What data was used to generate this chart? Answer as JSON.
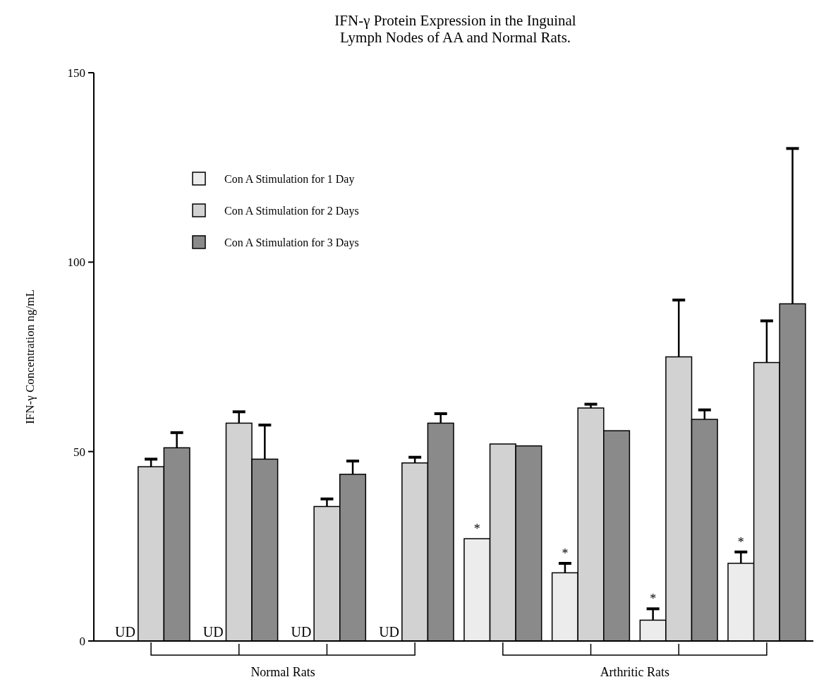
{
  "chart_data": {
    "type": "bar",
    "title": "IFN-γ Protein Expression in the Inguinal\nLymph Nodes of AA and Normal Rats.",
    "ylabel": "IFN-γ Concentration ng/mL",
    "categories": [
      null,
      null,
      null,
      null,
      null,
      null,
      null,
      null
    ],
    "series": [
      {
        "name": "Con A Stimulation for 1 Day",
        "color": "#ececec",
        "values": [
          null,
          null,
          null,
          null,
          27,
          18,
          5.5,
          20.5
        ],
        "errors": [
          null,
          null,
          null,
          null,
          null,
          [
            18,
            20.5
          ],
          [
            5.5,
            8.5
          ],
          [
            20.5,
            23.5
          ]
        ],
        "value_labels": [
          "UD",
          "UD",
          "UD",
          "UD",
          "*",
          "*",
          "*",
          "*"
        ]
      },
      {
        "name": "Con A Stimulation for 2 Days",
        "color": "#d2d2d2",
        "values": [
          46,
          57.5,
          35.5,
          47,
          52,
          61.5,
          75,
          73.5
        ],
        "errors": [
          [
            46,
            48
          ],
          [
            57.5,
            60.5
          ],
          [
            35.5,
            37.5
          ],
          [
            47,
            48.5
          ],
          null,
          [
            61.5,
            62.5
          ],
          [
            75,
            90
          ],
          [
            73.5,
            84.5
          ]
        ]
      },
      {
        "name": "Con A Stimulation for 3 Days",
        "color": "#8a8a8a",
        "values": [
          51,
          48,
          44,
          57.5,
          51.5,
          55.5,
          58.5,
          89
        ],
        "errors": [
          [
            51,
            55
          ],
          [
            48,
            57
          ],
          [
            44,
            47.5
          ],
          [
            57.5,
            60
          ],
          null,
          null,
          [
            58.5,
            61
          ],
          [
            89,
            130
          ]
        ]
      }
    ],
    "annotations": [
      "Normal Rats",
      "Arthritic Rats"
    ],
    "ylim": [
      0,
      150
    ],
    "yticks": [
      0,
      50,
      100,
      150
    ],
    "grid": false,
    "legend": "top left"
  }
}
